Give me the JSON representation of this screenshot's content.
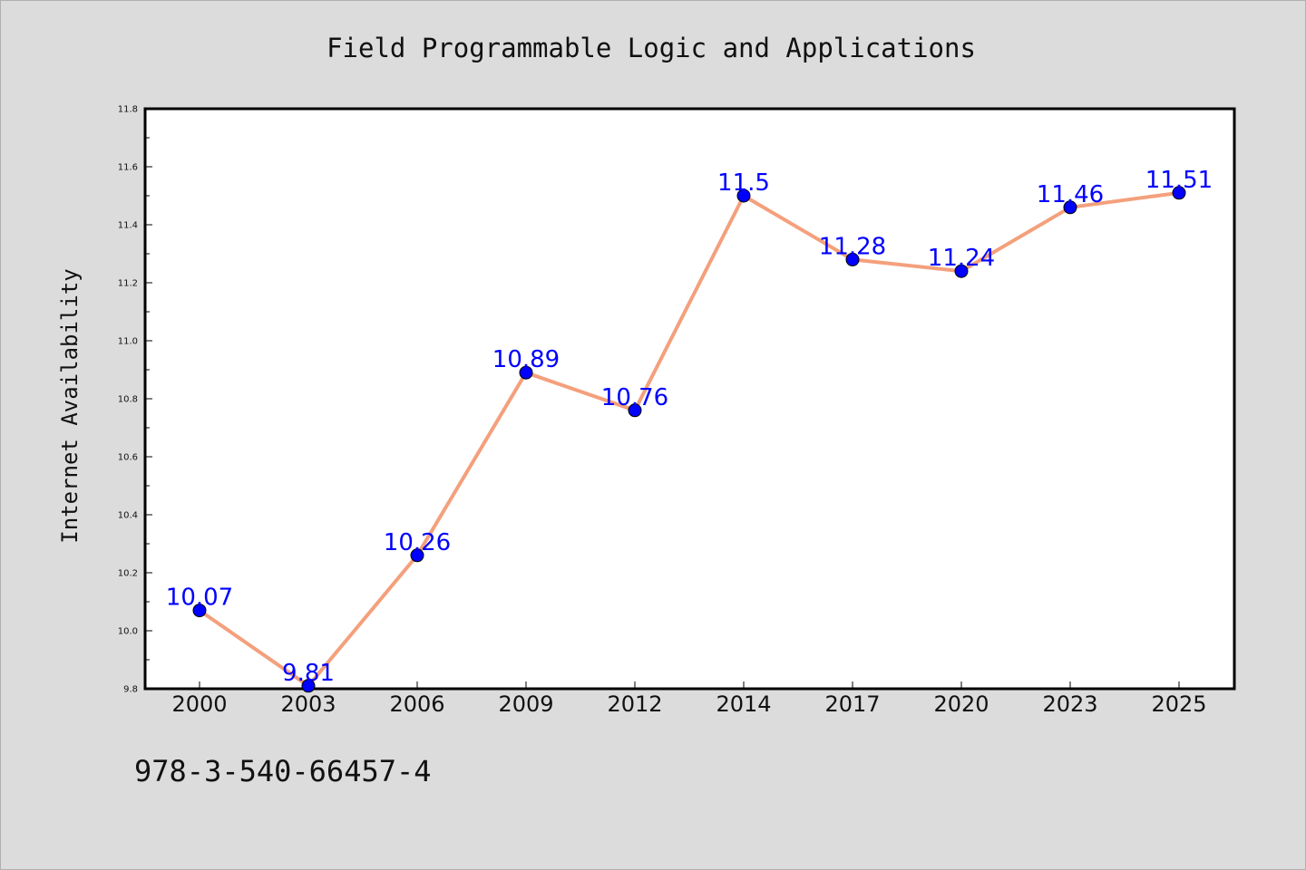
{
  "chart_data": {
    "type": "line",
    "title": "Field Programmable Logic and Applications",
    "xlabel": "",
    "ylabel": "Internet Availability",
    "categories": [
      "2000",
      "2003",
      "2006",
      "2009",
      "2012",
      "2014",
      "2017",
      "2020",
      "2023",
      "2025"
    ],
    "series": [
      {
        "values": [
          10.07,
          9.81,
          10.26,
          10.89,
          10.76,
          11.5,
          11.28,
          11.24,
          11.46,
          11.51
        ],
        "labels": [
          "10.07",
          "9.81",
          "10.26",
          "10.89",
          "10.76",
          "11.5",
          "11.28",
          "11.24",
          "11.46",
          "11.51"
        ],
        "line_color": "#f4a07c",
        "marker_color": "#0000ff"
      }
    ],
    "ylim": [
      9.8,
      11.8
    ],
    "yticks": [
      "9.8",
      "10.0",
      "10.2",
      "10.4",
      "10.6",
      "10.8",
      "11.0",
      "11.2",
      "11.4",
      "11.6",
      "11.8"
    ],
    "grid": false,
    "legend": "none"
  },
  "footnote": "978-3-540-66457-4",
  "colors": {
    "background": "#dcdcdc",
    "plot_background": "#ffffff",
    "line": "#f4a07c",
    "marker": "#0000ff",
    "data_label": "#0000ff"
  }
}
